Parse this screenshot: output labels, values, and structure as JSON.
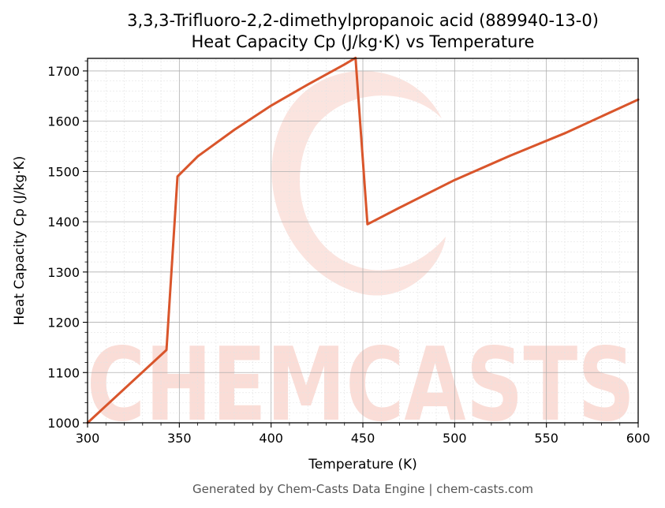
{
  "chart_data": {
    "type": "line",
    "title": "3,3,3-Trifluoro-2,2-dimethylpropanoic acid (889940-13-0)",
    "subtitle": "Heat Capacity Cp (J/kg·K) vs Temperature",
    "xlabel": "Temperature (K)",
    "ylabel": "Heat Capacity Cp (J/kg·K)",
    "xlim": [
      300,
      600
    ],
    "ylim": [
      1000,
      1725
    ],
    "xticks": [
      300,
      350,
      400,
      450,
      500,
      550,
      600
    ],
    "yticks": [
      1000,
      1100,
      1200,
      1300,
      1400,
      1500,
      1600,
      1700
    ],
    "grid": true,
    "line_color": "#d9552b",
    "series": [
      {
        "x": [
          300,
          343,
          349,
          360,
          380,
          400,
          420,
          440,
          446,
          452.5,
          470,
          500,
          530,
          560,
          600
        ],
        "values": [
          1000,
          1145,
          1490,
          1530,
          1583,
          1631,
          1673,
          1713,
          1726,
          1395,
          1428,
          1483,
          1531,
          1576,
          1643
        ]
      }
    ]
  },
  "watermark": {
    "text": "CHEMCASTS"
  },
  "footer": "Generated by Chem-Casts Data Engine | chem-casts.com"
}
